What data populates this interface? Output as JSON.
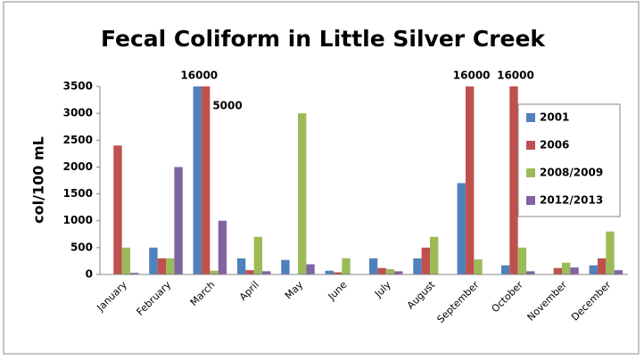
{
  "chart_data": {
    "type": "bar",
    "title": "Fecal Coliform in Little Silver Creek",
    "y_label": "col/100 mL",
    "categories": [
      "January",
      "February",
      "March",
      "April",
      "May",
      "June",
      "July",
      "August",
      "September",
      "October",
      "November",
      "December"
    ],
    "series": [
      {
        "name": "2001",
        "color": "#4f81bd",
        "values": [
          null,
          500,
          16000,
          300,
          270,
          70,
          300,
          300,
          1700,
          170,
          null,
          170
        ],
        "value_labels": [
          null,
          null,
          "16000",
          null,
          null,
          null,
          null,
          null,
          null,
          null,
          null,
          null
        ]
      },
      {
        "name": "2006",
        "color": "#c0504d",
        "values": [
          2400,
          300,
          5000,
          80,
          null,
          40,
          120,
          500,
          16000,
          16000,
          120,
          300
        ],
        "value_labels": [
          null,
          null,
          "5000",
          null,
          null,
          null,
          null,
          null,
          "16000",
          "16000",
          null,
          null
        ]
      },
      {
        "name": "2008/2009",
        "color": "#9bbb59",
        "values": [
          500,
          300,
          70,
          700,
          3000,
          300,
          100,
          700,
          280,
          500,
          220,
          800
        ]
      },
      {
        "name": "2012/2013",
        "color": "#8064a2",
        "values": [
          30,
          2000,
          1000,
          60,
          190,
          null,
          60,
          null,
          null,
          60,
          130,
          80
        ]
      }
    ],
    "ylim": [
      0,
      3500
    ],
    "yticks": [
      0,
      500,
      1000,
      1500,
      2000,
      2500,
      3000,
      3500
    ],
    "grid": false,
    "legend": "right"
  }
}
